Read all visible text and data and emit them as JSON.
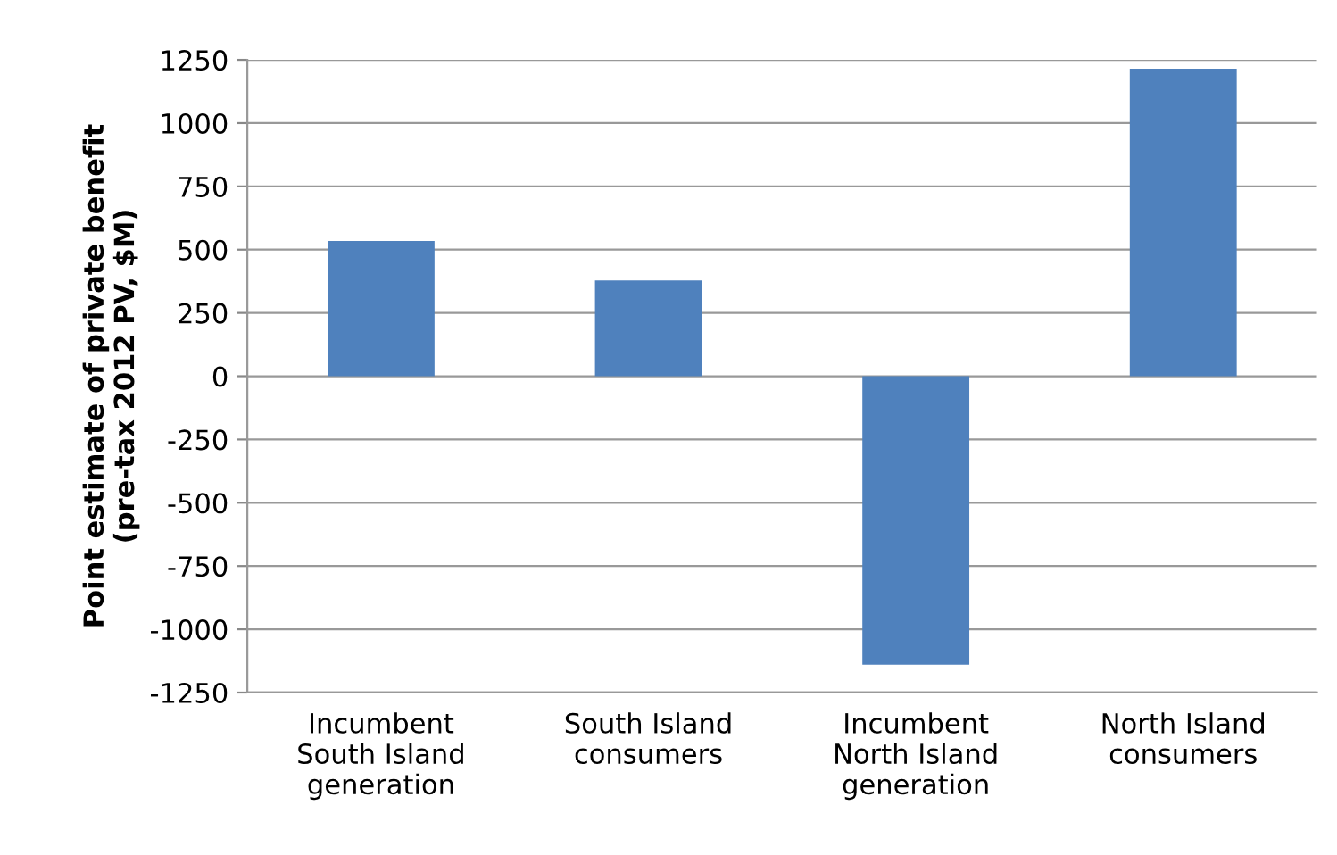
{
  "chart_data": {
    "type": "bar",
    "ylabel": "Point estimate of private benefit\n(pre-tax 2012 PV, $M)",
    "categories": [
      "Incumbent\nSouth Island\ngeneration",
      "South Island\nconsumers",
      "Incumbent\nNorth Island\ngeneration",
      "North Island\nconsumers"
    ],
    "values": [
      534,
      378,
      -1140,
      1215
    ],
    "color": "#4f81bd",
    "ylim": [
      -1250,
      1250
    ],
    "yticks": [
      {
        "value": -1250,
        "label": "-1250"
      },
      {
        "value": -1000,
        "label": "-1000"
      },
      {
        "value": -750,
        "label": "-750"
      },
      {
        "value": -500,
        "label": "-500"
      },
      {
        "value": -250,
        "label": "-250"
      },
      0,
      250,
      500,
      750,
      1000,
      1250
    ],
    "grid": "y"
  }
}
